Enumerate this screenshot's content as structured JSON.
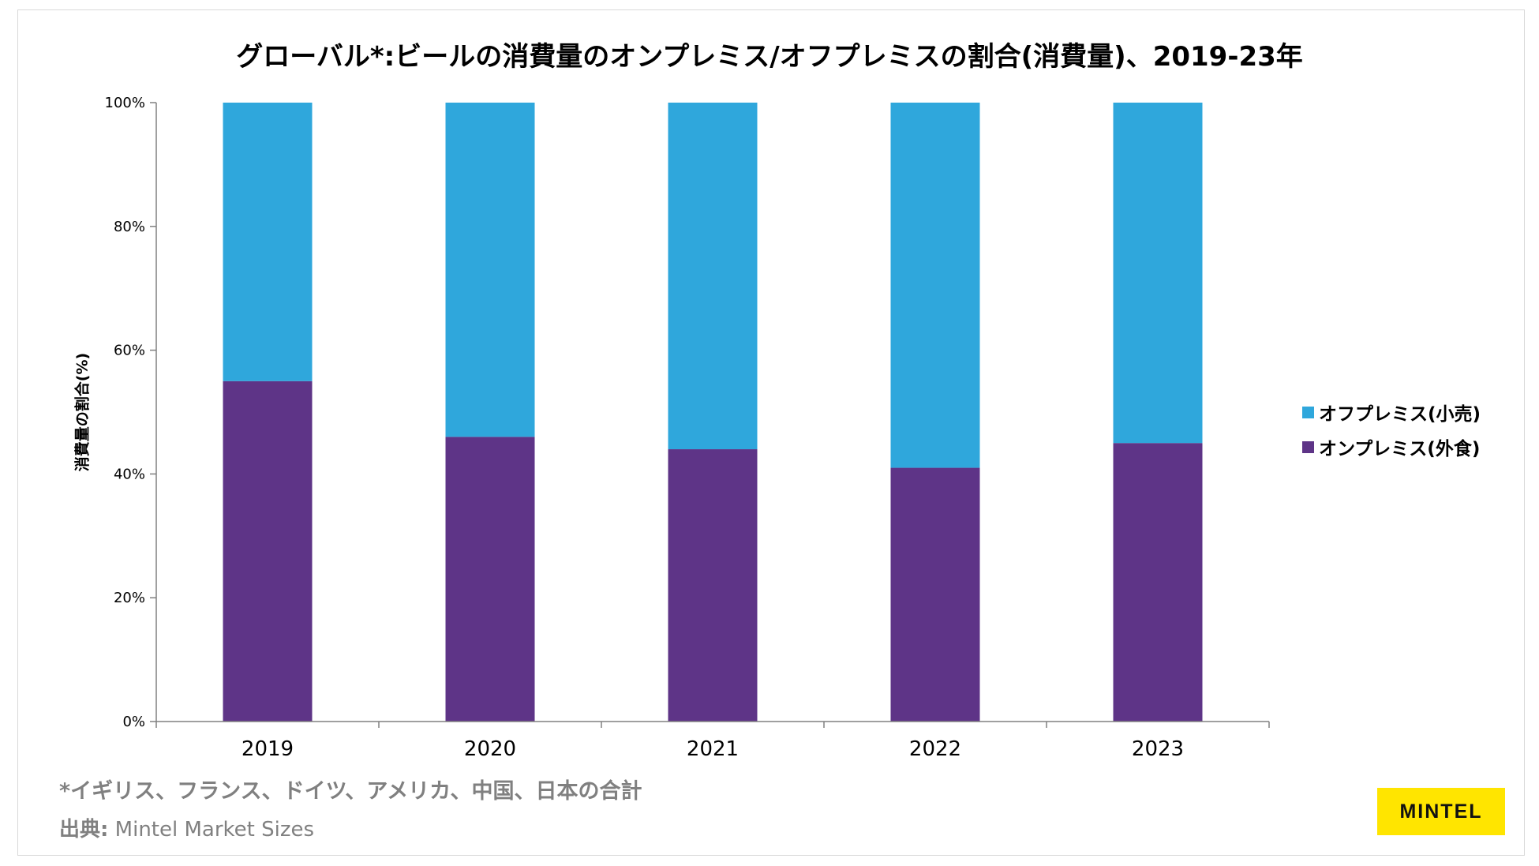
{
  "chart_data": {
    "type": "bar",
    "stacked": true,
    "title": "グローバル*:ビールの消費量のオンプレミス/オフプレミスの割合(消費量)、2019-23年",
    "ylabel": "消費量の割合(%)",
    "xlabel": "",
    "ylim": [
      0,
      100
    ],
    "y_ticks": [
      "0%",
      "20%",
      "40%",
      "60%",
      "80%",
      "100%"
    ],
    "y_tick_values": [
      0,
      20,
      40,
      60,
      80,
      100
    ],
    "categories": [
      "2019",
      "2020",
      "2021",
      "2022",
      "2023"
    ],
    "series": [
      {
        "name": "オンプレミス(外食)",
        "color": "#5e3487",
        "values": [
          55,
          46,
          44,
          41,
          45
        ]
      },
      {
        "name": "オフプレミス(小売)",
        "color": "#2fa7dc",
        "values": [
          45,
          54,
          56,
          59,
          55
        ]
      }
    ],
    "legend_order": [
      1,
      0
    ],
    "legend": "right"
  },
  "footnote": "*イギリス、フランス、ドイツ、アメリカ、中国、日本の合計",
  "source": {
    "label": "出典:",
    "text": " Mintel Market Sizes"
  },
  "logo": "MINTEL"
}
